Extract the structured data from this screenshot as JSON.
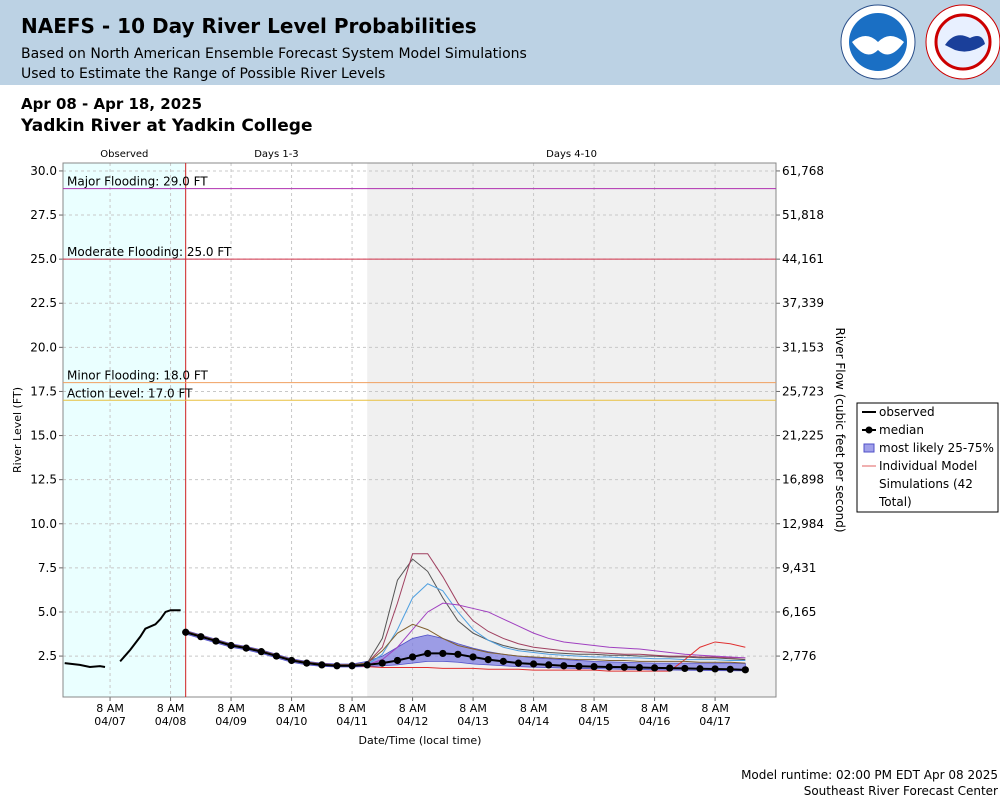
{
  "chart_data": {
    "type": "line",
    "title": "NAEFS - 10 Day River Level Probabilities",
    "subtitle": "Based on North American Ensemble Forecast System Model Simulations",
    "subtitle2": "Used to Estimate the Range of Possible River Levels",
    "date_range": "Apr 08 - Apr 18, 2025",
    "location": "Yadkin River at Yadkin College",
    "xlabel": "Date/Time (local time)",
    "ylabel": "River Level (FT)",
    "y2label": "River Flow (cubic feet per second)",
    "footer": [
      "Model runtime: 02:00 PM EDT Apr 08 2025",
      "Southeast River Forecast Center"
    ],
    "xlim": [
      "2025-04-06T13:20",
      "2025-04-18T08:10"
    ],
    "ylim": [
      0.18,
      30.45
    ],
    "grid": true,
    "legend": "right",
    "xticks": [
      {
        "value": "2025-04-07T08:00",
        "label": "8 AM\n04/07"
      },
      {
        "value": "2025-04-08T08:00",
        "label": "8 AM\n04/08"
      },
      {
        "value": "2025-04-09T08:00",
        "label": "8 AM\n04/09"
      },
      {
        "value": "2025-04-10T08:00",
        "label": "8 AM\n04/10"
      },
      {
        "value": "2025-04-11T08:00",
        "label": "8 AM\n04/11"
      },
      {
        "value": "2025-04-12T08:00",
        "label": "8 AM\n04/12"
      },
      {
        "value": "2025-04-13T08:00",
        "label": "8 AM\n04/13"
      },
      {
        "value": "2025-04-14T08:00",
        "label": "8 AM\n04/14"
      },
      {
        "value": "2025-04-15T08:00",
        "label": "8 AM\n04/15"
      },
      {
        "value": "2025-04-16T08:00",
        "label": "8 AM\n04/16"
      },
      {
        "value": "2025-04-17T08:00",
        "label": "8 AM\n04/17"
      }
    ],
    "yticks": [
      {
        "value": 30,
        "label": "30.0"
      },
      27.5,
      {
        "value": 25,
        "label": "25.0"
      },
      22.5,
      {
        "value": 20,
        "label": "20.0"
      },
      17.5,
      {
        "value": 15,
        "label": "15.0"
      },
      12.5,
      {
        "value": 10,
        "label": "10.0"
      },
      7.5,
      {
        "value": 5,
        "label": "5.0"
      },
      2.5
    ],
    "y2ticks": [
      {
        "value": 61768,
        "label": "61,768"
      },
      {
        "value": 51818,
        "label": "51,818"
      },
      {
        "value": 44161,
        "label": "44,161"
      },
      {
        "value": 37339,
        "label": "37,339"
      },
      {
        "value": 31153,
        "label": "31,153"
      },
      {
        "value": 25723,
        "label": "25,723"
      },
      {
        "value": 21225,
        "label": "21,225"
      },
      {
        "value": 16898,
        "label": "16,898"
      },
      {
        "value": 12984,
        "label": "12,984"
      },
      {
        "value": 9431,
        "label": "9,431"
      },
      {
        "value": 6165,
        "label": "6,165"
      },
      {
        "value": 2776,
        "label": "2,776"
      }
    ],
    "regions": [
      {
        "label": "Observed",
        "start": "2025-04-06T13:20",
        "end": "2025-04-08T14:00",
        "color": "#eaffff"
      },
      {
        "label": "Days 1-3",
        "start": "2025-04-08T14:00",
        "end": "2025-04-11T14:00",
        "color": "#ffffff"
      },
      {
        "label": "Days 4-10",
        "start": "2025-04-11T14:00",
        "end": "2025-04-18T08:10",
        "color": "#f0f0f0"
      }
    ],
    "thresholds": [
      {
        "label": "Major Flooding: 29.0 FT",
        "value": 29.0,
        "color": "#b030b0"
      },
      {
        "label": "Moderate Flooding: 25.0 FT",
        "value": 25.0,
        "color": "#d03048"
      },
      {
        "label": "Minor Flooding: 18.0 FT",
        "value": 18.0,
        "color": "#f0a060"
      },
      {
        "label": "Action Level: 17.0 FT",
        "value": 17.0,
        "color": "#e8c040"
      }
    ],
    "series": [
      {
        "name": "observed",
        "color": "#000000",
        "x": [
          "2025-04-06T14:00",
          "2025-04-06T20:00",
          "2025-04-07T00:00",
          "2025-04-07T04:00",
          "2025-04-07T06:00",
          "2025-04-07T08:00",
          "2025-04-07T12:00",
          "2025-04-07T16:00",
          "2025-04-07T20:00",
          "2025-04-07T22:00",
          "2025-04-08T02:00",
          "2025-04-08T04:00",
          "2025-04-08T06:00",
          "2025-04-08T08:00",
          "2025-04-08T12:00"
        ],
        "values": [
          2.1,
          2.0,
          1.88,
          1.93,
          1.88,
          null,
          2.2,
          2.85,
          3.6,
          4.05,
          4.3,
          4.6,
          5.0,
          5.1,
          5.1
        ]
      },
      {
        "name": "median",
        "color": "#000000",
        "x": [
          "2025-04-08T14:00",
          "2025-04-08T20:00",
          "2025-04-09T02:00",
          "2025-04-09T08:00",
          "2025-04-09T14:00",
          "2025-04-09T20:00",
          "2025-04-10T02:00",
          "2025-04-10T08:00",
          "2025-04-10T14:00",
          "2025-04-10T20:00",
          "2025-04-11T02:00",
          "2025-04-11T08:00",
          "2025-04-11T14:00",
          "2025-04-11T20:00",
          "2025-04-12T02:00",
          "2025-04-12T08:00",
          "2025-04-12T14:00",
          "2025-04-12T20:00",
          "2025-04-13T02:00",
          "2025-04-13T08:00",
          "2025-04-13T14:00",
          "2025-04-13T20:00",
          "2025-04-14T02:00",
          "2025-04-14T08:00",
          "2025-04-14T14:00",
          "2025-04-14T20:00",
          "2025-04-15T02:00",
          "2025-04-15T08:00",
          "2025-04-15T14:00",
          "2025-04-15T20:00",
          "2025-04-16T02:00",
          "2025-04-16T08:00",
          "2025-04-16T14:00",
          "2025-04-16T20:00",
          "2025-04-17T02:00",
          "2025-04-17T08:00",
          "2025-04-17T14:00",
          "2025-04-17T20:00"
        ],
        "values": [
          3.85,
          3.6,
          3.35,
          3.1,
          2.95,
          2.75,
          2.5,
          2.25,
          2.1,
          2.0,
          1.95,
          1.95,
          2.0,
          2.1,
          2.25,
          2.45,
          2.65,
          2.65,
          2.6,
          2.45,
          2.3,
          2.2,
          2.1,
          2.05,
          2.0,
          1.95,
          1.92,
          1.9,
          1.88,
          1.87,
          1.85,
          1.83,
          1.82,
          1.8,
          1.78,
          1.77,
          1.75,
          1.72
        ]
      }
    ],
    "band": {
      "name": "most likely 25-75%",
      "color": "#7878e0",
      "lower": [
        3.75,
        3.5,
        3.25,
        3.0,
        2.85,
        2.65,
        2.4,
        2.15,
        2.0,
        1.92,
        1.88,
        1.88,
        1.9,
        1.95,
        2.0,
        2.1,
        2.2,
        2.2,
        2.15,
        2.05,
        2.0,
        1.95,
        1.9,
        1.87,
        1.85,
        1.82,
        1.8,
        1.78,
        1.77,
        1.75,
        1.74,
        1.72,
        1.71,
        1.7,
        1.69,
        1.68,
        1.67,
        1.66
      ],
      "upper": [
        3.95,
        3.7,
        3.45,
        3.2,
        3.05,
        2.85,
        2.6,
        2.35,
        2.2,
        2.1,
        2.05,
        2.05,
        2.2,
        2.5,
        3.0,
        3.5,
        3.7,
        3.5,
        3.2,
        2.95,
        2.75,
        2.6,
        2.5,
        2.4,
        2.35,
        2.3,
        2.25,
        2.2,
        2.17,
        2.15,
        2.12,
        2.1,
        2.1,
        2.1,
        2.1,
        2.1,
        2.1,
        2.08
      ]
    },
    "members": {
      "name": "Individual Model Simulations (42 Total)",
      "color": "#e06060",
      "series": [
        {
          "color": "#555555",
          "values": [
            3.9,
            3.65,
            3.4,
            3.15,
            3.0,
            2.8,
            2.55,
            2.3,
            2.15,
            2.05,
            2.0,
            2.0,
            2.1,
            3.5,
            6.8,
            8.0,
            7.3,
            5.8,
            4.5,
            3.8,
            3.4,
            3.1,
            2.9,
            2.8,
            2.7,
            2.65,
            2.6,
            2.6,
            2.55,
            2.55,
            2.5,
            2.5,
            2.45,
            2.45,
            2.4,
            2.4,
            2.35,
            2.3
          ]
        },
        {
          "color": "#a04060",
          "values": [
            3.9,
            3.65,
            3.4,
            3.15,
            3.0,
            2.8,
            2.55,
            2.3,
            2.15,
            2.05,
            2.0,
            2.0,
            2.1,
            3.0,
            5.5,
            8.3,
            8.3,
            7.0,
            5.5,
            4.5,
            3.9,
            3.5,
            3.2,
            3.0,
            2.9,
            2.8,
            2.75,
            2.7,
            2.65,
            2.6,
            2.6,
            2.55,
            2.5,
            2.5,
            2.45,
            2.45,
            2.4,
            2.4
          ]
        },
        {
          "color": "#50a0e0",
          "values": [
            3.9,
            3.65,
            3.4,
            3.15,
            3.0,
            2.8,
            2.55,
            2.3,
            2.15,
            2.05,
            2.0,
            2.0,
            2.0,
            2.6,
            4.0,
            5.8,
            6.6,
            6.2,
            5.0,
            4.0,
            3.4,
            3.0,
            2.8,
            2.7,
            2.6,
            2.55,
            2.5,
            2.45,
            2.45,
            2.4,
            2.4,
            2.35,
            2.35,
            2.3,
            2.3,
            2.3,
            2.25,
            2.25
          ]
        },
        {
          "color": "#a040c0",
          "values": [
            3.9,
            3.65,
            3.4,
            3.15,
            3.0,
            2.8,
            2.55,
            2.3,
            2.15,
            2.05,
            2.0,
            2.0,
            2.0,
            2.3,
            3.0,
            4.0,
            5.0,
            5.5,
            5.4,
            5.2,
            5.0,
            4.6,
            4.2,
            3.8,
            3.5,
            3.3,
            3.2,
            3.1,
            3.0,
            2.95,
            2.9,
            2.8,
            2.7,
            2.6,
            2.55,
            2.5,
            2.45,
            2.4
          ]
        },
        {
          "color": "#e03030",
          "values": [
            3.9,
            3.65,
            3.4,
            3.15,
            3.0,
            2.8,
            2.55,
            2.3,
            2.15,
            2.05,
            2.0,
            2.0,
            1.9,
            1.85,
            1.85,
            1.85,
            1.85,
            1.8,
            1.8,
            1.8,
            1.75,
            1.75,
            1.75,
            1.7,
            1.7,
            1.7,
            1.7,
            1.7,
            1.65,
            1.65,
            1.65,
            1.65,
            1.65,
            2.3,
            3.0,
            3.3,
            3.2,
            3.0
          ]
        },
        {
          "color": "#806030",
          "values": [
            3.9,
            3.65,
            3.4,
            3.15,
            3.0,
            2.8,
            2.55,
            2.3,
            2.15,
            2.05,
            2.0,
            2.0,
            2.1,
            2.8,
            3.8,
            4.3,
            4.0,
            3.5,
            3.1,
            2.9,
            2.7,
            2.6,
            2.5,
            2.45,
            2.4,
            2.35,
            2.3,
            2.3,
            2.25,
            2.25,
            2.2,
            2.2,
            2.2,
            2.2,
            2.15,
            2.15,
            2.15,
            2.1
          ]
        }
      ]
    }
  }
}
